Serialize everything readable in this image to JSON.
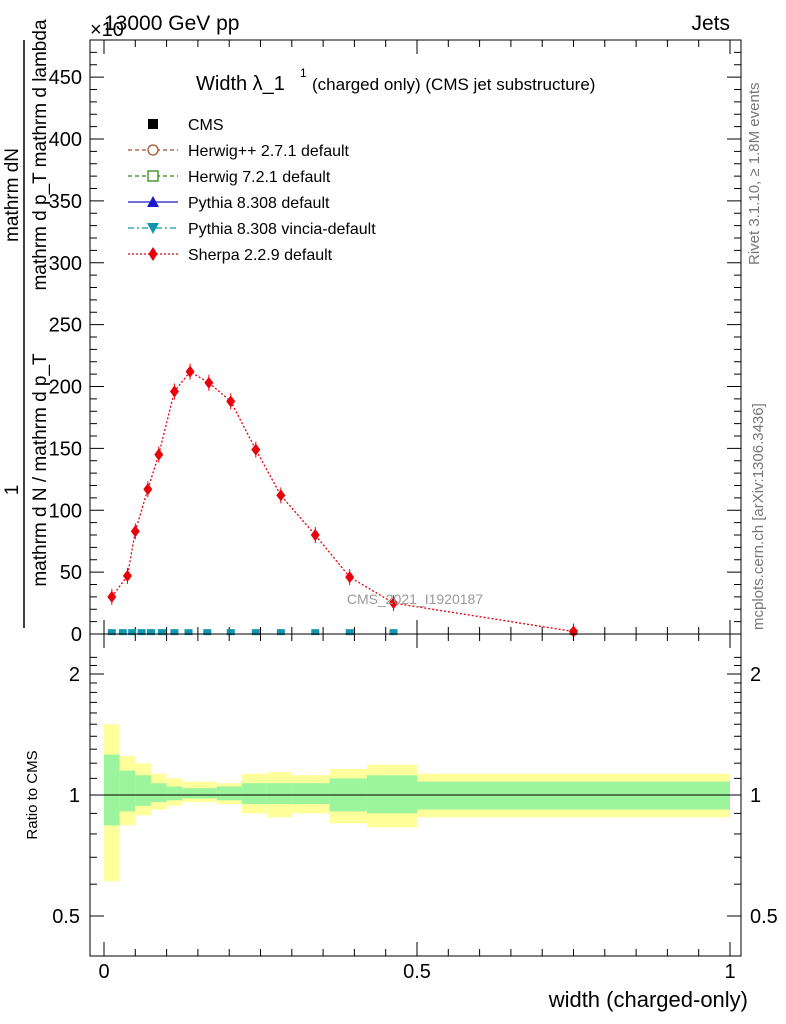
{
  "header": {
    "left": "13000 GeV pp",
    "right": "Jets",
    "multiplier": "×10"
  },
  "side_labels": {
    "rivet": "Rivet 3.1.10, ≥ 1.8M events",
    "mcplots": "mcplots.cern.ch [arXiv:1306.3436]"
  },
  "chart_data": {
    "type": "line",
    "title": "Width λ_1",
    "title_sup": "1",
    "subtitle": "(charged only) (CMS jet substructure)",
    "analysis_label": "CMS_2021_I1920187",
    "ylabel_main": {
      "num": "mathrm dN",
      "den": "mathrm d p_T mathrm d lambda",
      "pre_num": "1",
      "pre_den": "mathrm d N / mathrm d p_T"
    },
    "ylabel_ratio": "Ratio to CMS",
    "xlabel": "width (charged-only)",
    "xlim": [
      0,
      1
    ],
    "ylim_main": [
      0,
      480
    ],
    "ylim_ratio": [
      0.42,
      2.25
    ],
    "x_ticks": [
      "0",
      "0.5",
      "1"
    ],
    "y_ticks_main": [
      "0",
      "50",
      "100",
      "150",
      "200",
      "250",
      "300",
      "350",
      "400",
      "450"
    ],
    "y_ticks_ratio": [
      "0.5",
      "1",
      "2"
    ],
    "legend": [
      {
        "label": "CMS",
        "color": "#000000",
        "marker": "square",
        "line": "none"
      },
      {
        "label": "Herwig++ 2.7.1 default",
        "color": "#a0522d",
        "marker": "circle-open",
        "line": "dashed"
      },
      {
        "label": "Herwig 7.2.1 default",
        "color": "#2e8b0f",
        "marker": "square-open",
        "line": "dashed"
      },
      {
        "label": "Pythia 8.308 default",
        "color": "#1a1acc",
        "marker": "triangle",
        "line": "solid"
      },
      {
        "label": "Pythia 8.308 vincia-default",
        "color": "#1096b0",
        "marker": "triangle-down",
        "line": "dashdot"
      },
      {
        "label": "Sherpa 2.2.9 default",
        "color": "#e8000b",
        "marker": "diamond",
        "line": "dotted"
      }
    ],
    "sherpa_series": {
      "name": "Sherpa 2.2.9 default",
      "x": [
        0.0125,
        0.0375,
        0.05,
        0.07,
        0.0875,
        0.1125,
        0.1375,
        0.1675,
        0.2025,
        0.2425,
        0.2825,
        0.3375,
        0.3925,
        0.4625,
        0.75
      ],
      "y": [
        30,
        47,
        83,
        117,
        145,
        196,
        212,
        203,
        188,
        149,
        112,
        80,
        46,
        25,
        2
      ]
    },
    "flat_series_x": [
      0.0125,
      0.03,
      0.045,
      0.06,
      0.075,
      0.0925,
      0.1125,
      0.135,
      0.165,
      0.2025,
      0.2425,
      0.2825,
      0.3375,
      0.3925,
      0.4625,
      0.75
    ],
    "ratio_bins": [
      {
        "x0": 0.0,
        "x1": 0.025,
        "in_lo": 0.84,
        "in_hi": 1.26,
        "out_lo": 0.61,
        "out_hi": 1.5
      },
      {
        "x0": 0.025,
        "x1": 0.05,
        "in_lo": 0.91,
        "in_hi": 1.15,
        "out_lo": 0.84,
        "out_hi": 1.25
      },
      {
        "x0": 0.05,
        "x1": 0.075,
        "in_lo": 0.94,
        "in_hi": 1.12,
        "out_lo": 0.89,
        "out_hi": 1.2
      },
      {
        "x0": 0.075,
        "x1": 0.1,
        "in_lo": 0.96,
        "in_hi": 1.07,
        "out_lo": 0.92,
        "out_hi": 1.13
      },
      {
        "x0": 0.1,
        "x1": 0.125,
        "in_lo": 0.97,
        "in_hi": 1.05,
        "out_lo": 0.94,
        "out_hi": 1.1
      },
      {
        "x0": 0.125,
        "x1": 0.15,
        "in_lo": 0.98,
        "in_hi": 1.04,
        "out_lo": 0.96,
        "out_hi": 1.08
      },
      {
        "x0": 0.15,
        "x1": 0.18,
        "in_lo": 0.98,
        "in_hi": 1.04,
        "out_lo": 0.96,
        "out_hi": 1.08
      },
      {
        "x0": 0.18,
        "x1": 0.22,
        "in_lo": 0.97,
        "in_hi": 1.05,
        "out_lo": 0.95,
        "out_hi": 1.07
      },
      {
        "x0": 0.22,
        "x1": 0.26,
        "in_lo": 0.95,
        "in_hi": 1.07,
        "out_lo": 0.9,
        "out_hi": 1.13
      },
      {
        "x0": 0.26,
        "x1": 0.3,
        "in_lo": 0.95,
        "in_hi": 1.07,
        "out_lo": 0.88,
        "out_hi": 1.14
      },
      {
        "x0": 0.3,
        "x1": 0.36,
        "in_lo": 0.95,
        "in_hi": 1.07,
        "out_lo": 0.9,
        "out_hi": 1.12
      },
      {
        "x0": 0.36,
        "x1": 0.42,
        "in_lo": 0.91,
        "in_hi": 1.1,
        "out_lo": 0.85,
        "out_hi": 1.16
      },
      {
        "x0": 0.42,
        "x1": 0.5,
        "in_lo": 0.9,
        "in_hi": 1.12,
        "out_lo": 0.83,
        "out_hi": 1.19
      },
      {
        "x0": 0.5,
        "x1": 1.0,
        "in_lo": 0.92,
        "in_hi": 1.08,
        "out_lo": 0.88,
        "out_hi": 1.13
      }
    ],
    "colors": {
      "inner_band": "#9cf59c",
      "outer_band": "#ffff9c",
      "sherpa": "#e8000b",
      "flat": "#1096b0"
    }
  }
}
